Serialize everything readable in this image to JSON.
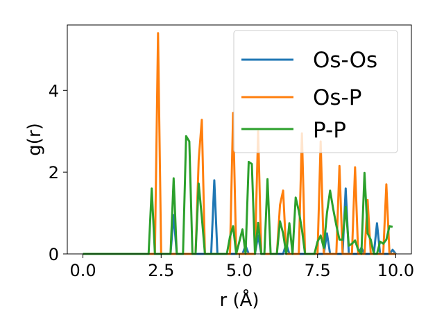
{
  "chart_data": {
    "type": "line",
    "xlabel": "r (Å)",
    "ylabel": "g(r)",
    "xlim": [
      -0.5,
      10.5
    ],
    "ylim": [
      0,
      5.6
    ],
    "xticks": [
      0.0,
      2.5,
      5.0,
      7.5,
      10.0
    ],
    "xtick_labels": [
      "0.0",
      "2.5",
      "5.0",
      "7.5",
      "10.0"
    ],
    "yticks": [
      0,
      2,
      4
    ],
    "ytick_labels": [
      "0",
      "2",
      "4"
    ],
    "grid": false,
    "legend_position": "top-right",
    "series": [
      {
        "name": "Os-Os",
        "color": "#1f77b4",
        "points": [
          [
            0.0,
            0
          ],
          [
            2.8,
            0
          ],
          [
            2.9,
            0.95
          ],
          [
            3.0,
            0
          ],
          [
            4.1,
            0
          ],
          [
            4.2,
            1.8
          ],
          [
            4.3,
            0
          ],
          [
            5.1,
            0
          ],
          [
            5.2,
            0.2
          ],
          [
            5.3,
            0
          ],
          [
            5.5,
            0
          ],
          [
            5.6,
            0.45
          ],
          [
            5.7,
            0
          ],
          [
            6.4,
            0
          ],
          [
            6.5,
            0.25
          ],
          [
            6.6,
            0
          ],
          [
            7.7,
            0
          ],
          [
            7.8,
            0.5
          ],
          [
            7.9,
            0
          ],
          [
            8.3,
            0
          ],
          [
            8.4,
            1.6
          ],
          [
            8.5,
            0
          ],
          [
            8.8,
            0
          ],
          [
            8.9,
            0.15
          ],
          [
            9.0,
            0
          ],
          [
            9.3,
            0
          ],
          [
            9.4,
            0.75
          ],
          [
            9.5,
            0
          ],
          [
            9.8,
            0
          ],
          [
            9.9,
            0.1
          ],
          [
            10.0,
            0
          ]
        ]
      },
      {
        "name": "Os-P",
        "color": "#ff7f0e",
        "points": [
          [
            0.0,
            0
          ],
          [
            2.3,
            0
          ],
          [
            2.4,
            5.4
          ],
          [
            2.5,
            0
          ],
          [
            3.6,
            0
          ],
          [
            3.7,
            2.3
          ],
          [
            3.8,
            3.28
          ],
          [
            3.9,
            0
          ],
          [
            4.7,
            0
          ],
          [
            4.8,
            3.45
          ],
          [
            4.9,
            0
          ],
          [
            5.5,
            0
          ],
          [
            5.6,
            3.0
          ],
          [
            5.7,
            0
          ],
          [
            6.2,
            0
          ],
          [
            6.3,
            1.2
          ],
          [
            6.4,
            1.55
          ],
          [
            6.5,
            0
          ],
          [
            6.9,
            0
          ],
          [
            7.0,
            2.95
          ],
          [
            7.1,
            0
          ],
          [
            7.5,
            0
          ],
          [
            7.6,
            2.75
          ],
          [
            7.7,
            0
          ],
          [
            8.1,
            0
          ],
          [
            8.2,
            2.15
          ],
          [
            8.3,
            0
          ],
          [
            8.6,
            0
          ],
          [
            8.7,
            2.12
          ],
          [
            8.8,
            0
          ],
          [
            9.0,
            0
          ],
          [
            9.1,
            1.32
          ],
          [
            9.2,
            0
          ],
          [
            9.6,
            0
          ],
          [
            9.7,
            1.7
          ],
          [
            9.8,
            0
          ],
          [
            10.0,
            0
          ]
        ]
      },
      {
        "name": "P-P",
        "color": "#2ca02c",
        "points": [
          [
            0.0,
            0
          ],
          [
            2.1,
            0
          ],
          [
            2.2,
            1.6
          ],
          [
            2.3,
            0
          ],
          [
            2.8,
            0
          ],
          [
            2.9,
            1.85
          ],
          [
            3.0,
            0
          ],
          [
            3.2,
            0
          ],
          [
            3.3,
            2.88
          ],
          [
            3.4,
            2.75
          ],
          [
            3.5,
            0
          ],
          [
            3.6,
            0
          ],
          [
            3.7,
            1.72
          ],
          [
            3.8,
            0.9
          ],
          [
            3.9,
            0
          ],
          [
            4.6,
            0
          ],
          [
            4.7,
            0.42
          ],
          [
            4.8,
            0.68
          ],
          [
            4.9,
            0
          ],
          [
            5.1,
            0.6
          ],
          [
            5.2,
            0
          ],
          [
            5.3,
            2.25
          ],
          [
            5.4,
            2.2
          ],
          [
            5.5,
            0
          ],
          [
            5.6,
            0.76
          ],
          [
            5.7,
            0
          ],
          [
            5.8,
            0
          ],
          [
            5.9,
            1.83
          ],
          [
            6.0,
            0
          ],
          [
            6.2,
            0
          ],
          [
            6.3,
            0.8
          ],
          [
            6.4,
            0.5
          ],
          [
            6.5,
            0
          ],
          [
            6.6,
            0.75
          ],
          [
            6.7,
            0
          ],
          [
            6.8,
            1.38
          ],
          [
            6.9,
            1.05
          ],
          [
            7.0,
            0.6
          ],
          [
            7.1,
            0
          ],
          [
            7.4,
            0
          ],
          [
            7.5,
            0.3
          ],
          [
            7.6,
            0.45
          ],
          [
            7.7,
            0.15
          ],
          [
            7.8,
            1.0
          ],
          [
            7.9,
            1.55
          ],
          [
            8.0,
            1.1
          ],
          [
            8.1,
            0.7
          ],
          [
            8.2,
            0.35
          ],
          [
            8.3,
            0.35
          ],
          [
            8.4,
            1.15
          ],
          [
            8.5,
            0.2
          ],
          [
            8.6,
            0.25
          ],
          [
            8.7,
            0.33
          ],
          [
            8.8,
            0.1
          ],
          [
            8.9,
            0
          ],
          [
            9.0,
            1.98
          ],
          [
            9.1,
            0.5
          ],
          [
            9.2,
            0.35
          ],
          [
            9.3,
            0
          ],
          [
            9.4,
            0
          ],
          [
            9.5,
            0.3
          ],
          [
            9.6,
            0.25
          ],
          [
            9.7,
            0.35
          ],
          [
            9.8,
            0.68
          ],
          [
            9.9,
            0.66
          ]
        ]
      }
    ]
  }
}
